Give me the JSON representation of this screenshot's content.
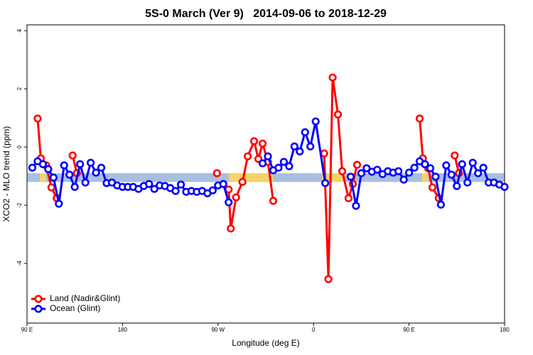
{
  "chart_data": {
    "type": "line",
    "title": "5S-0 March (Ver 9)   2014-09-06 to 2018-12-29",
    "xlabel": "Longitude (deg E)",
    "ylabel": "XCO2 - MLO trend (ppm)",
    "xlim": [
      90,
      540
    ],
    "xticks": [
      {
        "value": 90,
        "label": "90 E"
      },
      180,
      {
        "value": 270,
        "label": "90 W"
      },
      {
        "value": 360,
        "label": "0"
      },
      {
        "value": 450,
        "label": "90 E"
      },
      {
        "value": 540,
        "label": "180"
      }
    ],
    "ylim": [
      -6.05,
      4.2
    ],
    "yticks": [
      -4,
      -2,
      0,
      2,
      4
    ],
    "band": {
      "range": [
        -1.2,
        -0.9
      ],
      "color": "#a9bfe0"
    },
    "highlights": {
      "ranges": [
        [
          102,
          108
        ],
        [
          280,
          322
        ],
        [
          368,
          390
        ],
        [
          462,
          468
        ]
      ],
      "color": "#f7d26a"
    },
    "legend": "bottom-left",
    "series": [
      {
        "name": "Land (Nadir&Glint)",
        "color": "#ff0000",
        "x": [
          100,
          103,
          108,
          113,
          118,
          null,
          133,
          137,
          null,
          269,
          null,
          280,
          282,
          287,
          293,
          298,
          304,
          308,
          312,
          317,
          322,
          null,
          370,
          374,
          378,
          383,
          387,
          393,
          397,
          401,
          null,
          460,
          463,
          468,
          472,
          478,
          null,
          493,
          497
        ],
        "values": [
          0.98,
          -0.39,
          -0.63,
          -1.39,
          -1.76,
          null,
          -0.29,
          -0.9,
          null,
          -0.9,
          null,
          -1.46,
          -2.8,
          -1.73,
          -1.2,
          -0.32,
          0.2,
          -0.41,
          0.12,
          -0.51,
          -1.85,
          null,
          -0.22,
          -4.54,
          2.39,
          1.12,
          -0.83,
          -1.76,
          -1.27,
          -0.61,
          null,
          0.98,
          -0.39,
          -0.73,
          -1.39,
          -1.76,
          null,
          -0.29,
          -0.9
        ]
      },
      {
        "name": "Ocean (Glint)",
        "color": "#0000ff",
        "x": [
          95,
          100,
          105,
          110,
          115,
          120,
          125,
          130,
          135,
          140,
          145,
          150,
          155,
          160,
          165,
          170,
          175,
          180,
          185,
          190,
          195,
          200,
          205,
          210,
          215,
          220,
          225,
          230,
          235,
          240,
          245,
          250,
          255,
          260,
          265,
          270,
          275,
          280,
          null,
          312,
          317,
          322,
          327,
          332,
          337,
          342,
          347,
          352,
          357,
          362,
          371,
          null,
          395,
          400,
          405,
          410,
          415,
          420,
          425,
          430,
          435,
          440,
          445,
          450,
          455,
          460,
          465,
          470,
          475,
          480,
          485,
          490,
          495,
          500,
          505,
          510,
          515,
          520,
          525,
          530,
          535,
          540
        ],
        "values": [
          -0.71,
          -0.49,
          -0.59,
          -0.76,
          -1.05,
          -1.95,
          -0.63,
          -0.95,
          -1.37,
          -0.59,
          -1.22,
          -0.54,
          -0.88,
          -0.71,
          -1.24,
          -1.22,
          -1.32,
          -1.37,
          -1.37,
          -1.37,
          -1.44,
          -1.34,
          -1.27,
          -1.44,
          -1.32,
          -1.34,
          -1.41,
          -1.51,
          -1.29,
          -1.54,
          -1.51,
          -1.54,
          -1.51,
          -1.59,
          -1.49,
          -1.32,
          -1.27,
          -1.9,
          null,
          -0.56,
          -0.32,
          -0.8,
          -0.71,
          -0.51,
          -0.66,
          0.02,
          -0.15,
          0.51,
          0.02,
          0.88,
          -1.24,
          null,
          -1.02,
          -2.02,
          -0.9,
          -0.73,
          -0.85,
          -0.78,
          -0.93,
          -0.83,
          -0.88,
          -0.83,
          -1.12,
          -0.88,
          -0.71,
          -0.49,
          -0.59,
          -0.73,
          -1.02,
          -1.98,
          -0.63,
          -0.95,
          -1.34,
          -0.59,
          -1.22,
          -0.54,
          -0.9,
          -0.71,
          -1.22,
          -1.22,
          -1.29,
          -1.37
        ]
      }
    ]
  }
}
